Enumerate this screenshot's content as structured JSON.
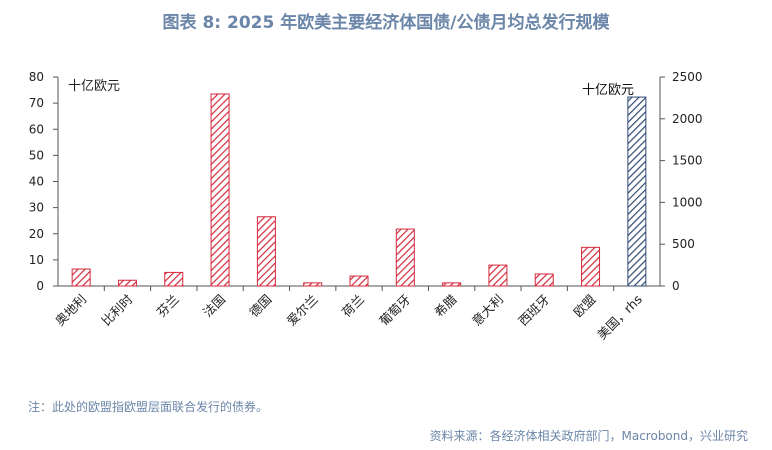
{
  "title": "图表 8:  2025 年欧美主要经济体国债/公债月均总发行规模",
  "note": "注：此处的欧盟指欧盟层面联合发行的债券。",
  "source": "资料来源：各经济体相关政府部门，Macrobond，兴业研究",
  "colors": {
    "left_series": "#d42a3c",
    "right_series": "#2f4a74",
    "title": "#6b86a8",
    "axis": "#555555"
  },
  "chart_data": {
    "type": "bar",
    "title": "图表 8:  2025 年欧美主要经济体国债/公债月均总发行规模",
    "categories": [
      "奥地利",
      "比利时",
      "芬兰",
      "法国",
      "德国",
      "爱尔兰",
      "荷兰",
      "葡萄牙",
      "希腊",
      "意大利",
      "西班牙",
      "欧盟",
      "美国，rhs"
    ],
    "series": [
      {
        "axis": "left",
        "color": "#d42a3c",
        "pattern": "hatch",
        "values": [
          6.5,
          2.2,
          5.2,
          73.5,
          26.5,
          1.2,
          3.8,
          21.8,
          1.2,
          8.0,
          4.6,
          14.8,
          null
        ]
      },
      {
        "axis": "right",
        "color": "#2f4a74",
        "pattern": "hatch",
        "values": [
          null,
          null,
          null,
          null,
          null,
          null,
          null,
          null,
          null,
          null,
          null,
          null,
          2260
        ]
      }
    ],
    "y_left": {
      "min": 0,
      "max": 80,
      "ticks": [
        0,
        10,
        20,
        30,
        40,
        50,
        60,
        70,
        80
      ],
      "unit_label": "十亿欧元"
    },
    "y_right": {
      "min": 0,
      "max": 2500,
      "ticks": [
        0,
        500,
        1000,
        1500,
        2000,
        2500
      ],
      "unit_label": "十亿欧元"
    },
    "grid": false,
    "legend": "none"
  }
}
